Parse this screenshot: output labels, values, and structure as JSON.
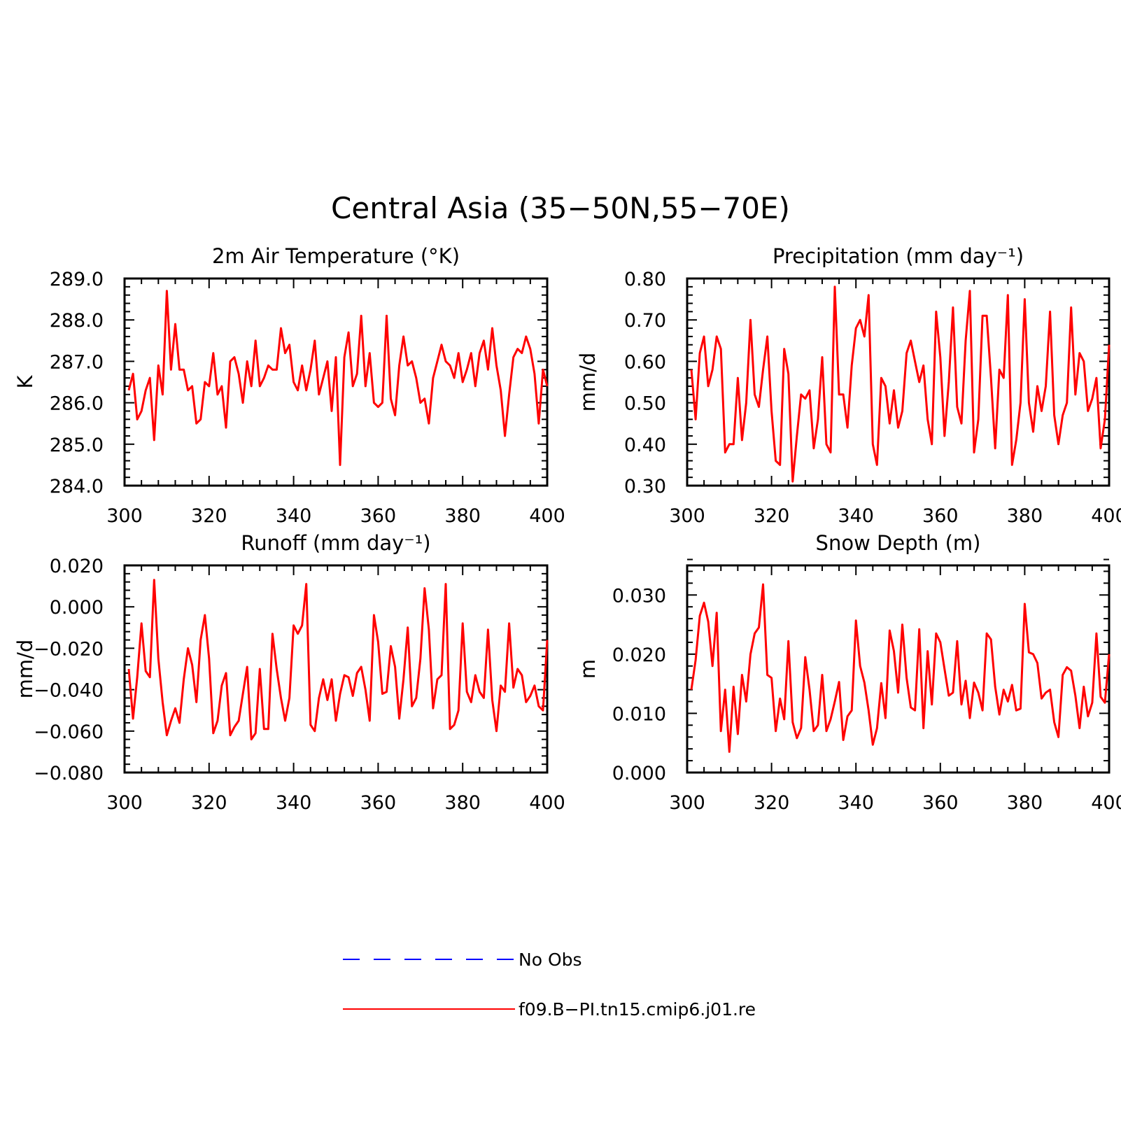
{
  "figure": {
    "title": "Central Asia (35−50N,55−70E)"
  },
  "colors": {
    "model_line": "#ff0000",
    "obs_line": "#0000ff",
    "axis": "#000000"
  },
  "legend": {
    "items": [
      {
        "label": "No Obs",
        "style": "dashed",
        "color": "#0000ff"
      },
      {
        "label": "f09.B−PI.tn15.cmip6.j01.re",
        "style": "solid",
        "color": "#ff0000"
      }
    ]
  },
  "chart_data": [
    {
      "type": "line",
      "title": "2m Air Temperature (°K)",
      "ylabel": "K",
      "xlim": [
        300,
        400
      ],
      "ylim": [
        284.0,
        289.0
      ],
      "x_ticks": [
        "300",
        "320",
        "340",
        "360",
        "380",
        "400"
      ],
      "y_ticks": [
        "284.0",
        "285.0",
        "286.0",
        "287.0",
        "288.0",
        "289.0"
      ],
      "x_start": 301,
      "series": [
        {
          "name": "f09.B−PI.tn15.cmip6.j01.re",
          "values": [
            286.3,
            286.7,
            285.6,
            285.8,
            286.3,
            286.6,
            285.1,
            286.9,
            286.2,
            288.7,
            286.8,
            287.9,
            286.8,
            286.8,
            286.3,
            286.4,
            285.5,
            285.6,
            286.5,
            286.4,
            287.2,
            286.2,
            286.4,
            285.4,
            287.0,
            287.1,
            286.7,
            286.0,
            287.0,
            286.4,
            287.5,
            286.4,
            286.6,
            286.9,
            286.8,
            286.8,
            287.8,
            287.2,
            287.4,
            286.5,
            286.3,
            286.9,
            286.3,
            286.8,
            287.5,
            286.2,
            286.6,
            287.0,
            285.8,
            287.1,
            284.5,
            287.1,
            287.7,
            286.4,
            286.7,
            288.1,
            286.4,
            287.2,
            286.0,
            285.9,
            286.0,
            288.1,
            286.1,
            285.7,
            286.9,
            287.6,
            286.9,
            287.0,
            286.6,
            286.0,
            286.1,
            285.5,
            286.6,
            287.0,
            287.4,
            287.0,
            286.9,
            286.6,
            287.2,
            286.5,
            286.8,
            287.2,
            286.4,
            287.2,
            287.5,
            286.8,
            287.8,
            286.9,
            286.3,
            285.2,
            286.2,
            287.1,
            287.3,
            287.2,
            287.6,
            287.3,
            286.7,
            285.5,
            286.8,
            286.4
          ]
        }
      ]
    },
    {
      "type": "line",
      "title": "Precipitation (mm day⁻¹)",
      "ylabel": "mm/d",
      "xlim": [
        300,
        400
      ],
      "ylim": [
        0.3,
        0.8
      ],
      "x_ticks": [
        "300",
        "320",
        "340",
        "360",
        "380",
        "400"
      ],
      "y_ticks": [
        "0.30",
        "0.40",
        "0.50",
        "0.60",
        "0.70",
        "0.80"
      ],
      "x_start": 301,
      "series": [
        {
          "name": "f09.B−PI.tn15.cmip6.j01.re",
          "values": [
            0.58,
            0.46,
            0.62,
            0.66,
            0.54,
            0.58,
            0.66,
            0.63,
            0.38,
            0.4,
            0.4,
            0.56,
            0.41,
            0.5,
            0.7,
            0.52,
            0.49,
            0.58,
            0.66,
            0.48,
            0.36,
            0.35,
            0.63,
            0.57,
            0.31,
            0.42,
            0.52,
            0.51,
            0.53,
            0.39,
            0.46,
            0.61,
            0.4,
            0.38,
            0.78,
            0.52,
            0.52,
            0.44,
            0.59,
            0.68,
            0.7,
            0.66,
            0.76,
            0.4,
            0.35,
            0.56,
            0.54,
            0.45,
            0.53,
            0.44,
            0.48,
            0.62,
            0.65,
            0.6,
            0.55,
            0.59,
            0.46,
            0.4,
            0.72,
            0.61,
            0.42,
            0.55,
            0.73,
            0.49,
            0.45,
            0.65,
            0.77,
            0.38,
            0.46,
            0.71,
            0.71,
            0.56,
            0.39,
            0.58,
            0.56,
            0.76,
            0.35,
            0.41,
            0.5,
            0.75,
            0.5,
            0.43,
            0.54,
            0.48,
            0.54,
            0.72,
            0.47,
            0.4,
            0.47,
            0.5,
            0.73,
            0.52,
            0.62,
            0.6,
            0.48,
            0.51,
            0.56,
            0.39,
            0.46,
            0.64
          ]
        }
      ]
    },
    {
      "type": "line",
      "title": "Runoff (mm day⁻¹)",
      "ylabel": "mm/d",
      "xlim": [
        300,
        400
      ],
      "ylim": [
        -0.08,
        0.02
      ],
      "x_ticks": [
        "300",
        "320",
        "340",
        "360",
        "380",
        "400"
      ],
      "y_ticks": [
        "−0.080",
        "−0.060",
        "−0.040",
        "−0.020",
        "0.000",
        "0.020"
      ],
      "x_start": 301,
      "series": [
        {
          "name": "f09.B−PI.tn15.cmip6.j01.re",
          "values": [
            -0.03,
            -0.054,
            -0.034,
            -0.008,
            -0.031,
            -0.034,
            0.013,
            -0.025,
            -0.046,
            -0.062,
            -0.055,
            -0.049,
            -0.056,
            -0.035,
            -0.02,
            -0.028,
            -0.046,
            -0.016,
            -0.004,
            -0.025,
            -0.061,
            -0.055,
            -0.038,
            -0.032,
            -0.062,
            -0.058,
            -0.055,
            -0.042,
            -0.029,
            -0.064,
            -0.061,
            -0.03,
            -0.059,
            -0.059,
            -0.013,
            -0.03,
            -0.044,
            -0.055,
            -0.044,
            -0.009,
            -0.013,
            -0.009,
            0.011,
            -0.057,
            -0.06,
            -0.044,
            -0.035,
            -0.045,
            -0.035,
            -0.055,
            -0.042,
            -0.033,
            -0.034,
            -0.043,
            -0.032,
            -0.029,
            -0.04,
            -0.055,
            -0.004,
            -0.017,
            -0.042,
            -0.041,
            -0.019,
            -0.029,
            -0.054,
            -0.035,
            -0.01,
            -0.048,
            -0.044,
            -0.025,
            0.009,
            -0.011,
            -0.049,
            -0.035,
            -0.033,
            0.011,
            -0.059,
            -0.057,
            -0.05,
            -0.008,
            -0.041,
            -0.046,
            -0.033,
            -0.041,
            -0.044,
            -0.011,
            -0.045,
            -0.06,
            -0.038,
            -0.041,
            -0.008,
            -0.039,
            -0.03,
            -0.033,
            -0.046,
            -0.043,
            -0.038,
            -0.048,
            -0.05,
            -0.016
          ]
        }
      ]
    },
    {
      "type": "line",
      "title": "Snow Depth (m)",
      "ylabel": "m",
      "xlim": [
        300,
        400
      ],
      "ylim": [
        0.0,
        0.035
      ],
      "x_ticks": [
        "300",
        "320",
        "340",
        "360",
        "380",
        "400"
      ],
      "y_ticks": [
        "0.000",
        "0.010",
        "0.020",
        "0.030"
      ],
      "x_start": 301,
      "series": [
        {
          "name": "f09.B−PI.tn15.cmip6.j01.re",
          "values": [
            0.014,
            0.019,
            0.0265,
            0.0287,
            0.0255,
            0.018,
            0.027,
            0.007,
            0.014,
            0.0035,
            0.0145,
            0.0065,
            0.0165,
            0.012,
            0.02,
            0.0235,
            0.0245,
            0.0318,
            0.0165,
            0.016,
            0.007,
            0.0125,
            0.009,
            0.0222,
            0.0085,
            0.0058,
            0.0075,
            0.0195,
            0.014,
            0.007,
            0.008,
            0.0165,
            0.007,
            0.009,
            0.012,
            0.0153,
            0.0055,
            0.0095,
            0.0105,
            0.0257,
            0.018,
            0.0152,
            0.0105,
            0.0047,
            0.0075,
            0.0151,
            0.0092,
            0.024,
            0.0205,
            0.0135,
            0.025,
            0.016,
            0.011,
            0.0105,
            0.0242,
            0.0075,
            0.0205,
            0.0115,
            0.0235,
            0.022,
            0.0175,
            0.013,
            0.0135,
            0.0222,
            0.0115,
            0.0155,
            0.0092,
            0.0152,
            0.0135,
            0.0105,
            0.0235,
            0.0225,
            0.0145,
            0.0098,
            0.014,
            0.012,
            0.0148,
            0.0105,
            0.0108,
            0.0285,
            0.0203,
            0.02,
            0.0185,
            0.0125,
            0.0135,
            0.014,
            0.0085,
            0.006,
            0.0165,
            0.0178,
            0.0172,
            0.013,
            0.0075,
            0.0145,
            0.0095,
            0.0118,
            0.0235,
            0.0128,
            0.0118,
            0.02
          ]
        }
      ]
    }
  ]
}
